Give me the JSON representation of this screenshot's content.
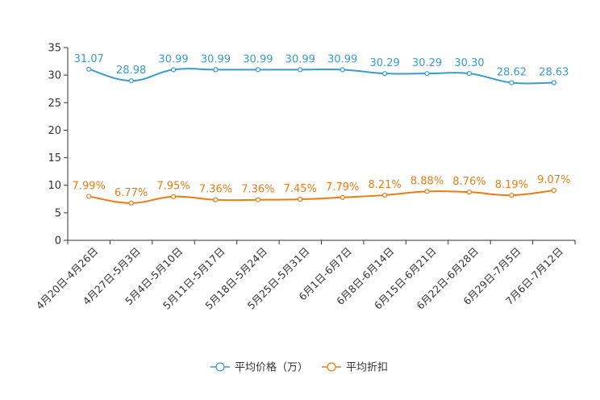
{
  "chart_data": {
    "type": "line",
    "categories": [
      "4月20日-4月26日",
      "4月27日-5月3日",
      "5月4日-5月10日",
      "5月11日-5月17日",
      "5月18日-5月24日",
      "5月25日-5月31日",
      "6月1日-6月7日",
      "6月8日-6月14日",
      "6月15日-6月21日",
      "6月22日-6月28日",
      "6月29日-7月5日",
      "7月6日-7月12日"
    ],
    "series": [
      {
        "name": "平均价格（万）",
        "values": [
          31.07,
          28.98,
          30.99,
          30.99,
          30.99,
          30.99,
          30.99,
          30.29,
          30.29,
          30.3,
          28.62,
          28.63
        ],
        "labels": [
          "31.07",
          "28.98",
          "30.99",
          "30.99",
          "30.99",
          "30.99",
          "30.99",
          "30.29",
          "30.29",
          "30.30",
          "28.62",
          "28.63"
        ],
        "color": "#3a9bd0"
      },
      {
        "name": "平均折扣",
        "values": [
          7.99,
          6.77,
          7.95,
          7.36,
          7.36,
          7.45,
          7.79,
          8.21,
          8.88,
          8.76,
          8.19,
          9.07
        ],
        "labels": [
          "7.99%",
          "6.77%",
          "7.95%",
          "7.36%",
          "7.36%",
          "7.45%",
          "7.79%",
          "8.21%",
          "8.88%",
          "8.76%",
          "8.19%",
          "9.07%"
        ],
        "color": "#f07a12"
      }
    ],
    "yticks": [
      "0",
      "5",
      "10",
      "15",
      "20",
      "25",
      "30",
      "35"
    ],
    "ylim": [
      0,
      35
    ],
    "grid": false,
    "legend": "bottom-center"
  }
}
